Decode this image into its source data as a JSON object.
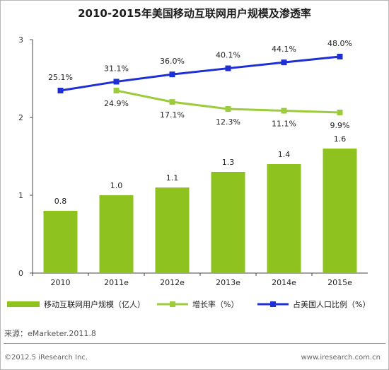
{
  "chart_data": {
    "type": "bar",
    "title": "2010-2015年美国移动互联网用户规模及渗透率",
    "categories": [
      "2010",
      "2011e",
      "2012e",
      "2013e",
      "2014e",
      "2015e"
    ],
    "ylim": [
      0,
      3
    ],
    "yticks": [
      "0",
      "1",
      "2",
      "3"
    ],
    "grid": false,
    "legend_position": "bottom",
    "series": [
      {
        "name": "移动互联网用户规模（亿人）",
        "type": "bar",
        "color": "#8dc21f",
        "values": [
          0.8,
          1.0,
          1.1,
          1.3,
          1.4,
          1.6
        ],
        "labels": [
          "0.8",
          "1.0",
          "1.1",
          "1.3",
          "1.4",
          "1.6"
        ]
      },
      {
        "name": "增长率（%）",
        "type": "line",
        "color": "#9ccc3c",
        "values": [
          null,
          24.9,
          17.1,
          12.3,
          11.1,
          9.9
        ],
        "labels": [
          "",
          "24.9%",
          "17.1%",
          "12.3%",
          "11.1%",
          "9.9%"
        ]
      },
      {
        "name": "占美国人口比例（%）",
        "type": "line",
        "color": "#1f2fd6",
        "values": [
          25.1,
          31.1,
          36.0,
          40.1,
          44.1,
          48.0
        ],
        "labels": [
          "25.1%",
          "31.1%",
          "36.0%",
          "40.1%",
          "44.1%",
          "48.0%"
        ]
      }
    ]
  },
  "source": "来源：eMarketer.2011.8",
  "footer": {
    "copyright": "©2012.5 iResearch Inc.",
    "website": "www.iresearch.com.cn"
  }
}
